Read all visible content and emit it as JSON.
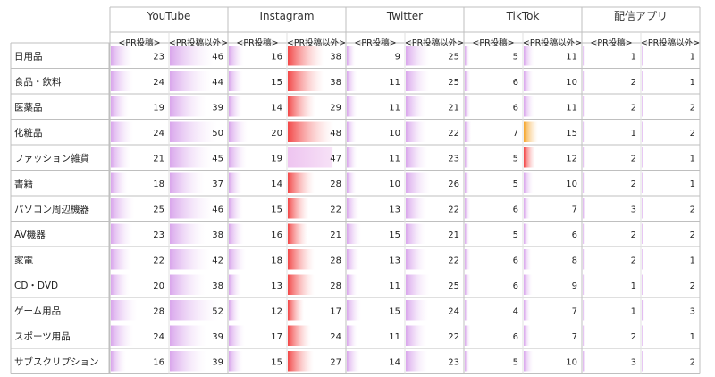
{
  "chart_data": {
    "type": "table",
    "platforms": [
      "YouTube",
      "Instagram",
      "Twitter",
      "TikTok",
      "配信アプリ"
    ],
    "subheaders": [
      "<PR投稿>",
      "<PR投稿以外>"
    ],
    "categories": [
      "日用品",
      "食品・飲料",
      "医薬品",
      "化粧品",
      "ファッション雑貨",
      "書籍",
      "パソコン周辺機器",
      "AV機器",
      "家電",
      "CD・DVD",
      "ゲーム用品",
      "スポーツ用品",
      "サブスクリプション"
    ],
    "series": [
      {
        "platform": "YouTube",
        "column": "<PR投稿>",
        "values": [
          23,
          24,
          19,
          24,
          21,
          18,
          25,
          23,
          22,
          20,
          28,
          24,
          16
        ]
      },
      {
        "platform": "YouTube",
        "column": "<PR投稿以外>",
        "values": [
          46,
          44,
          39,
          50,
          45,
          37,
          46,
          38,
          42,
          38,
          52,
          39,
          39
        ]
      },
      {
        "platform": "Instagram",
        "column": "<PR投稿>",
        "values": [
          16,
          15,
          14,
          20,
          19,
          14,
          15,
          16,
          18,
          13,
          12,
          17,
          15
        ]
      },
      {
        "platform": "Instagram",
        "column": "<PR投稿以外>",
        "values": [
          38,
          38,
          29,
          48,
          47,
          28,
          22,
          21,
          28,
          28,
          17,
          24,
          27
        ]
      },
      {
        "platform": "Twitter",
        "column": "<PR投稿>",
        "values": [
          9,
          11,
          11,
          10,
          11,
          10,
          13,
          15,
          13,
          11,
          15,
          11,
          14
        ]
      },
      {
        "platform": "Twitter",
        "column": "<PR投稿以外>",
        "values": [
          25,
          25,
          21,
          22,
          23,
          26,
          22,
          21,
          22,
          25,
          24,
          22,
          23
        ]
      },
      {
        "platform": "TikTok",
        "column": "<PR投稿>",
        "values": [
          5,
          6,
          6,
          7,
          5,
          5,
          6,
          5,
          6,
          6,
          4,
          6,
          5
        ]
      },
      {
        "platform": "TikTok",
        "column": "<PR投稿以外>",
        "values": [
          11,
          10,
          11,
          15,
          12,
          10,
          7,
          6,
          8,
          9,
          7,
          7,
          10
        ]
      },
      {
        "platform": "配信アプリ",
        "column": "<PR投稿>",
        "values": [
          1,
          2,
          2,
          1,
          2,
          2,
          3,
          2,
          2,
          1,
          1,
          2,
          3
        ]
      },
      {
        "platform": "配信アプリ",
        "column": "<PR投稿以外>",
        "values": [
          1,
          1,
          2,
          2,
          1,
          1,
          2,
          2,
          1,
          2,
          3,
          1,
          2
        ]
      }
    ],
    "colors": {
      "pr_bar": "#dcb4ec",
      "red_bar": "#f55b5b",
      "orange_bar": "#f7a93a",
      "light_pink_bar": "#f0ccf2",
      "grid": "#bfbfbf"
    },
    "highlight": {
      "red": [
        [
          1,
          0
        ],
        [
          1,
          1
        ],
        [
          1,
          2
        ],
        [
          1,
          3
        ],
        [
          1,
          5
        ],
        [
          1,
          6
        ],
        [
          1,
          7
        ],
        [
          1,
          8
        ],
        [
          1,
          9
        ],
        [
          1,
          10
        ],
        [
          1,
          11
        ],
        [
          1,
          12
        ],
        [
          3,
          4
        ]
      ],
      "orange": [
        [
          3,
          3
        ]
      ],
      "light": [
        [
          1,
          4
        ]
      ]
    }
  }
}
